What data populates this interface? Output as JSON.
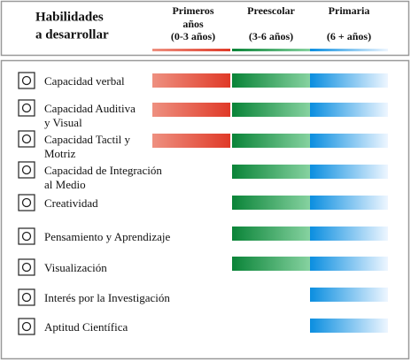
{
  "header": {
    "title": [
      "Habilidades",
      "a desarrollar"
    ],
    "columns": [
      {
        "lines": [
          "Primeros",
          "años",
          "(0-3 años)"
        ]
      },
      {
        "lines": [
          "Preescolar",
          "(3-6 años)"
        ]
      },
      {
        "lines": [
          "Primaria",
          "(6 + años)"
        ]
      }
    ]
  },
  "rows": [
    {
      "label": [
        "Capacidad verbal"
      ],
      "stages": [
        true,
        true,
        true
      ]
    },
    {
      "label": [
        "Capacidad Auditiva",
        "y Visual"
      ],
      "stages": [
        true,
        true,
        true
      ]
    },
    {
      "label": [
        "Capacidad Tactil y",
        "Motriz"
      ],
      "stages": [
        true,
        true,
        true
      ]
    },
    {
      "label": [
        "Capacidad de Integración",
        "al Medio"
      ],
      "stages": [
        false,
        true,
        true
      ]
    },
    {
      "label": [
        "Creatividad"
      ],
      "stages": [
        false,
        true,
        true
      ]
    },
    {
      "label": [
        "Pensamiento y Aprendizaje"
      ],
      "stages": [
        false,
        true,
        true
      ]
    },
    {
      "label": [
        "Visualización"
      ],
      "stages": [
        false,
        true,
        true
      ]
    },
    {
      "label": [
        "Interés por la Investigación"
      ],
      "stages": [
        false,
        false,
        true
      ]
    },
    {
      "label": [
        "Aptitud Científica"
      ],
      "stages": [
        false,
        false,
        true
      ]
    }
  ]
}
